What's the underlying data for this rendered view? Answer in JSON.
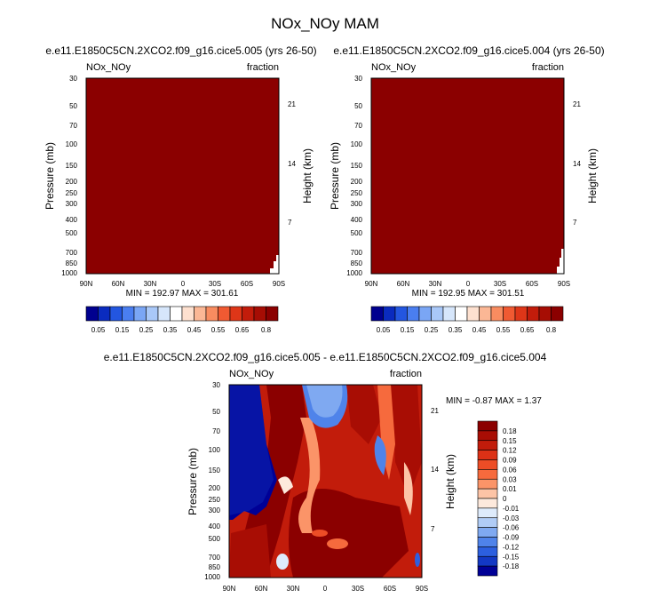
{
  "main_title": "NOx_NOy MAM",
  "colors": {
    "dark_red": "#8b0000",
    "low_blue": "#1a2aa8"
  },
  "panels": [
    {
      "title": "e.e11.E1850C5CN.2XCO2.f09_g16.cice5.005 (yrs 26-50)",
      "left_label": "NOx_NOy",
      "right_label": "fraction",
      "ylabel": "Pressure (mb)",
      "ylabel_right": "Height (km)",
      "stats": "MIN = 192.97   MAX = 301.61"
    },
    {
      "title": "e.e11.E1850C5CN.2XCO2.f09_g16.cice5.004 (yrs 26-50)",
      "left_label": "NOx_NOy",
      "right_label": "fraction",
      "ylabel": "Pressure (mb)",
      "ylabel_right": "Height (km)",
      "stats": "MIN = 192.95   MAX = 301.51"
    },
    {
      "title": "e.e11.E1850C5CN.2XCO2.f09_g16.cice5.005 - e.e11.E1850C5CN.2XCO2.f09_g16.cice5.004",
      "left_label": "NOx_NOy",
      "right_label": "fraction",
      "ylabel": "Pressure (mb)",
      "ylabel_right": "Height (km)",
      "stats": "MIN = -0.87   MAX =  1.37"
    }
  ],
  "chart_data": {
    "type": "heatmap",
    "x_ticks": [
      "90N",
      "60N",
      "30N",
      "0",
      "30S",
      "60S",
      "90S"
    ],
    "y_ticks_pressure": [
      "30",
      "50",
      "70",
      "100",
      "150",
      "200",
      "250",
      "300",
      "400",
      "500",
      "700",
      "850",
      "1000"
    ],
    "y_ticks_height": [
      "21",
      "14",
      "7"
    ],
    "top_colorbar": {
      "levels": [
        "0.05",
        "0.15",
        "0.25",
        "0.35",
        "0.45",
        "0.55",
        "0.65",
        "0.8"
      ],
      "colors": [
        "#00008f",
        "#0a2bbf",
        "#2356e0",
        "#4a7ef0",
        "#7aa6f5",
        "#a9c8f8",
        "#d6e6fb",
        "#ffffff",
        "#fde0cf",
        "#fbb795",
        "#f88c60",
        "#f05a32",
        "#de3618",
        "#c21c0b",
        "#a60d04",
        "#8b0000"
      ]
    },
    "diff_colorbar": {
      "levels": [
        "0.18",
        "0.15",
        "0.12",
        "0.09",
        "0.06",
        "0.03",
        "0.01",
        "0",
        "-0.01",
        "-0.03",
        "-0.06",
        "-0.09",
        "-0.12",
        "-0.15",
        "-0.18"
      ],
      "colors": [
        "#8b0000",
        "#a80d04",
        "#c21c0b",
        "#dc3116",
        "#ed4d26",
        "#f66a3d",
        "#fb9468",
        "#fdc4a6",
        "#fde9dc",
        "#deebfb",
        "#b0ccf6",
        "#7fa9f1",
        "#4f83ea",
        "#2c5fdf",
        "#1338c4",
        "#000096"
      ]
    }
  }
}
